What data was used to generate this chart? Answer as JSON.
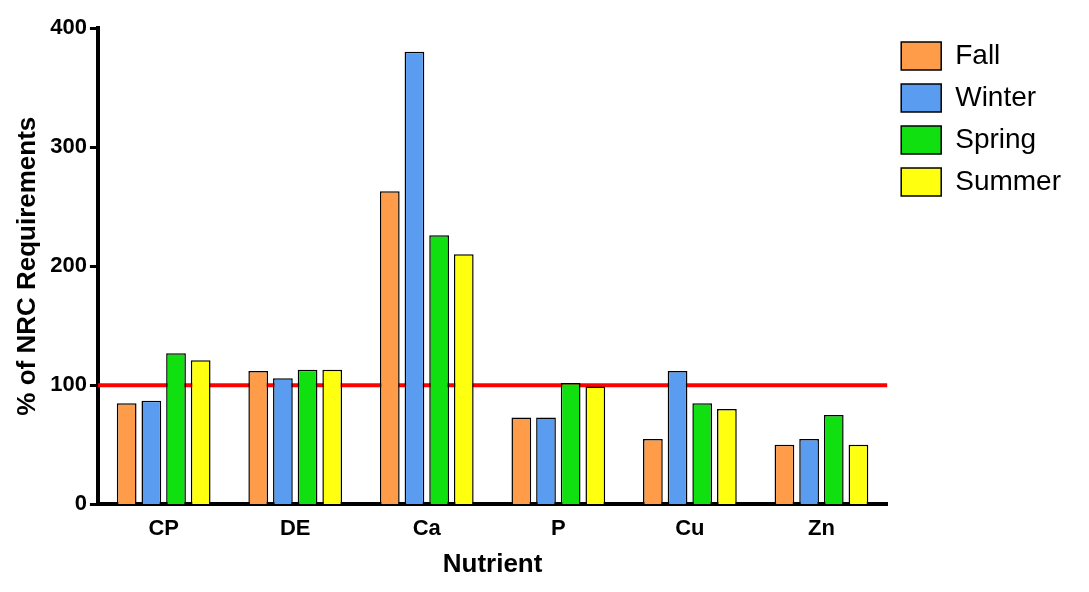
{
  "chart_data": {
    "type": "bar",
    "xlabel": "Nutrient",
    "ylabel": "% of NRC Requirements",
    "categories": [
      "CP",
      "DE",
      "Ca",
      "P",
      "Cu",
      "Zn"
    ],
    "series": [
      {
        "name": "Fall",
        "color": "#ff9c4a",
        "values": [
          85,
          112,
          263,
          73,
          55,
          50
        ]
      },
      {
        "name": "Winter",
        "color": "#5a9cf0",
        "values": [
          87,
          106,
          380,
          73,
          112,
          55
        ]
      },
      {
        "name": "Spring",
        "color": "#10e010",
        "values": [
          127,
          113,
          226,
          102,
          85,
          75
        ]
      },
      {
        "name": "Summer",
        "color": "#ffff10",
        "values": [
          121,
          113,
          210,
          99,
          80,
          50
        ]
      }
    ],
    "ylim": [
      0,
      400
    ],
    "yticks": [
      0,
      100,
      200,
      300,
      400
    ],
    "grid": false,
    "legend": "right",
    "ref_lines": [
      {
        "axis": "y",
        "value": 100,
        "color": "#ff0000"
      }
    ]
  }
}
